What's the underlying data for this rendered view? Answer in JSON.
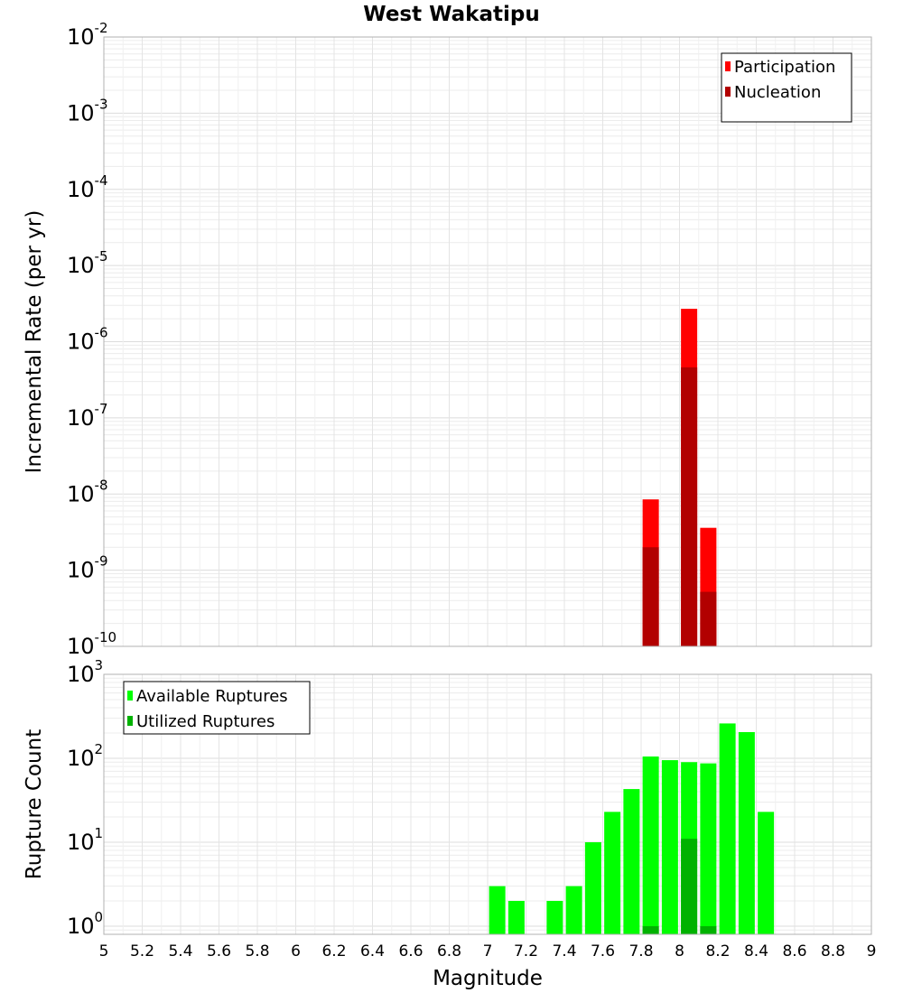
{
  "chart_data": {
    "type": "bar",
    "title": "West Wakatipu",
    "xlabel": "Magnitude",
    "xlim": [
      5,
      9
    ],
    "x_ticks": [
      "5",
      "5.2",
      "5.4",
      "5.6",
      "5.8",
      "6",
      "6.2",
      "6.4",
      "6.6",
      "6.8",
      "7",
      "7.2",
      "7.4",
      "7.6",
      "7.8",
      "8",
      "8.2",
      "8.4",
      "8.6",
      "8.8",
      "9"
    ],
    "panels": [
      {
        "ylabel": "Incremental Rate (per yr)",
        "yscale": "log",
        "ylim": [
          1e-10,
          0.01
        ],
        "y_ticks": [
          {
            "base": "10",
            "exp": "-10"
          },
          {
            "base": "10",
            "exp": "-9"
          },
          {
            "base": "10",
            "exp": "-8"
          },
          {
            "base": "10",
            "exp": "-7"
          },
          {
            "base": "10",
            "exp": "-6"
          },
          {
            "base": "10",
            "exp": "-5"
          },
          {
            "base": "10",
            "exp": "-4"
          },
          {
            "base": "10",
            "exp": "-3"
          },
          {
            "base": "10",
            "exp": "-2"
          }
        ],
        "legend_position": "top-right",
        "series": [
          {
            "name": "Participation",
            "color": "#ff0000",
            "points": [
              {
                "x": 7.85,
                "y": 8.5e-09
              },
              {
                "x": 8.05,
                "y": 2.7e-06
              },
              {
                "x": 8.15,
                "y": 3.6e-09
              }
            ]
          },
          {
            "name": "Nucleation",
            "color": "#b20000",
            "points": [
              {
                "x": 7.85,
                "y": 2e-09
              },
              {
                "x": 8.05,
                "y": 4.6e-07
              },
              {
                "x": 8.15,
                "y": 5.2e-10
              }
            ]
          }
        ]
      },
      {
        "ylabel": "Rupture Count",
        "yscale": "log",
        "ylim": [
          0.8,
          1000
        ],
        "y_ticks": [
          {
            "base": "10",
            "exp": "0"
          },
          {
            "base": "10",
            "exp": "1"
          },
          {
            "base": "10",
            "exp": "2"
          },
          {
            "base": "10",
            "exp": "3"
          }
        ],
        "legend_position": "top-left",
        "series": [
          {
            "name": "Available Ruptures",
            "color": "#00ff00",
            "points": [
              {
                "x": 7.05,
                "y": 3
              },
              {
                "x": 7.15,
                "y": 2
              },
              {
                "x": 7.35,
                "y": 2
              },
              {
                "x": 7.45,
                "y": 3
              },
              {
                "x": 7.55,
                "y": 10
              },
              {
                "x": 7.65,
                "y": 23
              },
              {
                "x": 7.75,
                "y": 43
              },
              {
                "x": 7.85,
                "y": 105
              },
              {
                "x": 7.95,
                "y": 95
              },
              {
                "x": 8.05,
                "y": 90
              },
              {
                "x": 8.15,
                "y": 87
              },
              {
                "x": 8.25,
                "y": 260
              },
              {
                "x": 8.35,
                "y": 205
              },
              {
                "x": 8.45,
                "y": 23
              }
            ]
          },
          {
            "name": "Utilized Ruptures",
            "color": "#00b200",
            "points": [
              {
                "x": 7.85,
                "y": 1
              },
              {
                "x": 8.05,
                "y": 11
              },
              {
                "x": 8.15,
                "y": 1
              }
            ]
          }
        ]
      }
    ]
  }
}
